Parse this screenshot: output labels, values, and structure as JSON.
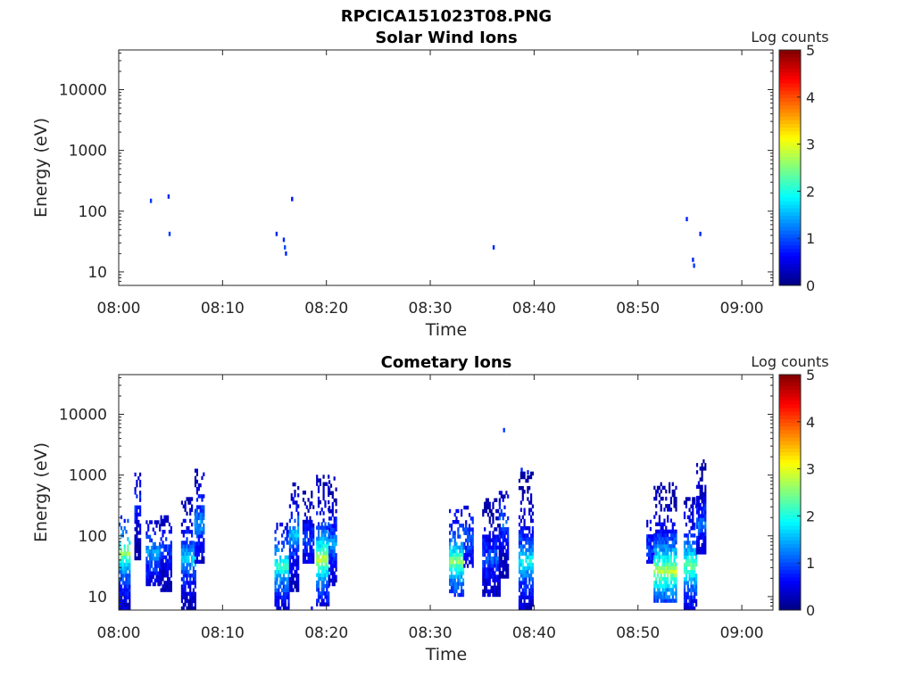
{
  "figure": {
    "title": "RPCICA151023T08.PNG"
  },
  "chart_data": [
    {
      "type": "heatmap",
      "title": "Solar Wind Ions",
      "xlabel": "Time",
      "ylabel": "Energy (eV)",
      "y_scale": "log",
      "xlim": [
        "08:00",
        "09:03"
      ],
      "ylim": [
        6,
        45000
      ],
      "x_ticks": [
        "08:00",
        "08:10",
        "08:20",
        "08:30",
        "08:40",
        "08:50",
        "09:00"
      ],
      "y_ticks": [
        "10",
        "100",
        "1000",
        "10000"
      ],
      "colorbar": {
        "label": "Log counts",
        "range": [
          0,
          5
        ],
        "ticks": [
          "0",
          "1",
          "2",
          "3",
          "4",
          "5"
        ],
        "colormap": "jet"
      },
      "points": [
        {
          "t": 3.0,
          "e": 140,
          "v": 0.9
        },
        {
          "t": 4.7,
          "e": 165,
          "v": 0.8
        },
        {
          "t": 4.8,
          "e": 40,
          "v": 0.9
        },
        {
          "t": 15.1,
          "e": 40,
          "v": 0.8
        },
        {
          "t": 15.8,
          "e": 32,
          "v": 0.8
        },
        {
          "t": 15.9,
          "e": 24,
          "v": 1.0
        },
        {
          "t": 16.0,
          "e": 19,
          "v": 0.8
        },
        {
          "t": 16.6,
          "e": 150,
          "v": 0.7
        },
        {
          "t": 36.0,
          "e": 24,
          "v": 0.8
        },
        {
          "t": 54.6,
          "e": 70,
          "v": 0.8
        },
        {
          "t": 55.2,
          "e": 15,
          "v": 0.8
        },
        {
          "t": 55.3,
          "e": 12,
          "v": 0.9
        },
        {
          "t": 55.9,
          "e": 40,
          "v": 0.8
        }
      ]
    },
    {
      "type": "heatmap",
      "title": "Cometary Ions",
      "xlabel": "Time",
      "ylabel": "Energy (eV)",
      "y_scale": "log",
      "xlim": [
        "08:00",
        "09:03"
      ],
      "ylim": [
        6,
        45000
      ],
      "x_ticks": [
        "08:00",
        "08:10",
        "08:20",
        "08:30",
        "08:40",
        "08:50",
        "09:00"
      ],
      "y_ticks": [
        "10",
        "100",
        "1000",
        "10000"
      ],
      "colorbar": {
        "label": "Log counts",
        "range": [
          0,
          5
        ],
        "ticks": [
          "0",
          "1",
          "2",
          "3",
          "4",
          "5"
        ],
        "colormap": "jet"
      },
      "bursts": [
        {
          "t0": 0.0,
          "t1": 1.0,
          "emin": 6,
          "emax": 190,
          "peak": 2.7,
          "peak_e": 50
        },
        {
          "t0": 1.5,
          "t1": 2.0,
          "emin": 40,
          "emax": 1100,
          "peak": 1.0,
          "peak_e": 300
        },
        {
          "t0": 2.6,
          "t1": 4.0,
          "emin": 15,
          "emax": 180,
          "peak": 1.4,
          "peak_e": 50
        },
        {
          "t0": 4.0,
          "t1": 5.0,
          "emin": 12,
          "emax": 200,
          "peak": 1.0,
          "peak_e": 60
        },
        {
          "t0": 6.0,
          "t1": 7.3,
          "emin": 6,
          "emax": 400,
          "peak": 1.7,
          "peak_e": 40
        },
        {
          "t0": 7.3,
          "t1": 8.2,
          "emin": 35,
          "emax": 1200,
          "peak": 1.5,
          "peak_e": 150
        },
        {
          "t0": 15.0,
          "t1": 16.4,
          "emin": 6,
          "emax": 150,
          "peak": 2.2,
          "peak_e": 30
        },
        {
          "t0": 16.4,
          "t1": 17.3,
          "emin": 12,
          "emax": 750,
          "peak": 1.6,
          "peak_e": 100
        },
        {
          "t0": 17.7,
          "t1": 18.7,
          "emin": 35,
          "emax": 500,
          "peak": 0.9,
          "peak_e": 80
        },
        {
          "t0": 19.0,
          "t1": 20.2,
          "emin": 7,
          "emax": 900,
          "peak": 2.9,
          "peak_e": 40
        },
        {
          "t0": 20.2,
          "t1": 20.9,
          "emin": 15,
          "emax": 900,
          "peak": 1.4,
          "peak_e": 70
        },
        {
          "t0": 31.8,
          "t1": 33.2,
          "emin": 10,
          "emax": 250,
          "peak": 2.6,
          "peak_e": 35
        },
        {
          "t0": 33.2,
          "t1": 34.0,
          "emin": 30,
          "emax": 300,
          "peak": 1.2,
          "peak_e": 90
        },
        {
          "t0": 35.0,
          "t1": 36.6,
          "emin": 10,
          "emax": 400,
          "peak": 1.1,
          "peak_e": 40
        },
        {
          "t0": 36.6,
          "t1": 37.4,
          "emin": 20,
          "emax": 500,
          "peak": 1.2,
          "peak_e": 150
        },
        {
          "t0": 38.5,
          "t1": 39.8,
          "emin": 6,
          "emax": 1100,
          "peak": 2.0,
          "peak_e": 35
        },
        {
          "t0": 50.8,
          "t1": 51.5,
          "emin": 35,
          "emax": 180,
          "peak": 1.0,
          "peak_e": 60
        },
        {
          "t0": 51.5,
          "t1": 53.6,
          "emin": 8,
          "emax": 700,
          "peak": 2.9,
          "peak_e": 25
        },
        {
          "t0": 54.4,
          "t1": 55.6,
          "emin": 6,
          "emax": 400,
          "peak": 2.5,
          "peak_e": 30
        },
        {
          "t0": 55.6,
          "t1": 56.4,
          "emin": 50,
          "emax": 1800,
          "peak": 1.2,
          "peak_e": 150
        }
      ],
      "points": [
        {
          "t": 37.0,
          "e": 5200,
          "v": 0.9
        },
        {
          "t": 38.7,
          "e": 1150,
          "v": 0.8
        },
        {
          "t": 39.3,
          "e": 1050,
          "v": 0.8
        },
        {
          "t": 18.5,
          "e": 6,
          "v": 0.7
        }
      ]
    }
  ]
}
